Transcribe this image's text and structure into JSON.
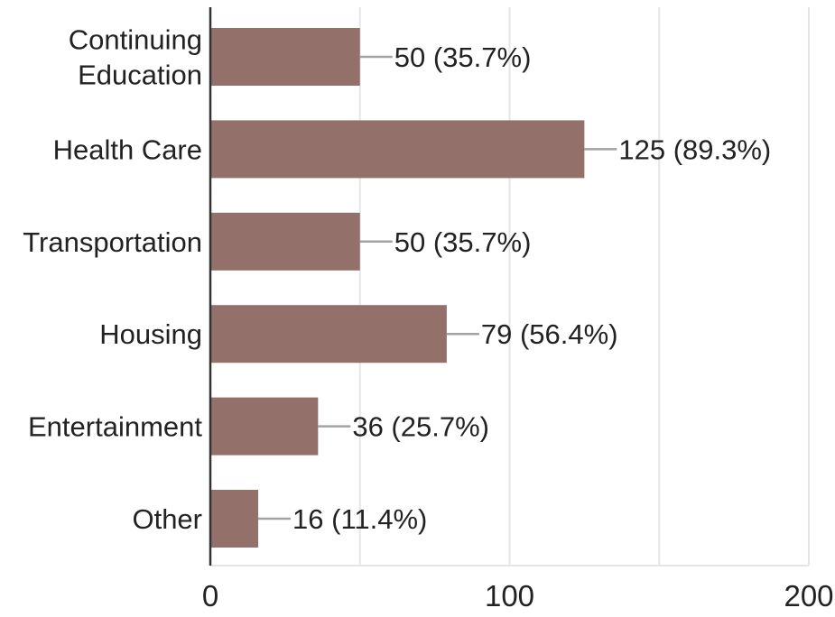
{
  "chart_data": {
    "type": "bar",
    "orientation": "horizontal",
    "categories": [
      [
        "Continuing",
        "Education"
      ],
      [
        "Health Care"
      ],
      [
        "Transportation"
      ],
      [
        "Housing"
      ],
      [
        "Entertainment"
      ],
      [
        "Other"
      ]
    ],
    "values": [
      50,
      125,
      50,
      79,
      36,
      16
    ],
    "data_labels": [
      "50 (35.7%)",
      "125 (89.3%)",
      "50 (35.7%)",
      "79 (56.4%)",
      "36 (25.7%)",
      "16 (11.4%)"
    ],
    "x_ticks": [
      {
        "value": 0,
        "label": "0"
      },
      {
        "value": 100,
        "label": "100"
      },
      {
        "value": 200,
        "label": "200"
      }
    ],
    "xlim": [
      0,
      200
    ],
    "grid": true,
    "title": "",
    "xlabel": "",
    "ylabel": "",
    "colors": {
      "bar": "#937069",
      "grid": "#e6e6e6",
      "axis": "#333333",
      "leader": "#a3a3a3",
      "text": "#222222"
    }
  }
}
